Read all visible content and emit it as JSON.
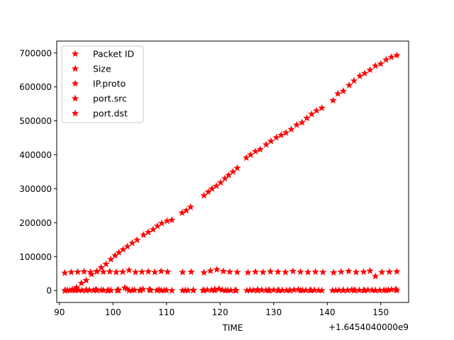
{
  "chart_data": {
    "type": "scatter",
    "title": "",
    "xlabel": "TIME",
    "ylabel": "",
    "x_offset_text": "+1.6454040000e9",
    "xlim": [
      89.5,
      155.2
    ],
    "ylim": [
      -35000,
      735000
    ],
    "xticks": [
      90,
      100,
      110,
      120,
      130,
      140,
      150
    ],
    "yticks": [
      0,
      100000,
      200000,
      300000,
      400000,
      500000,
      600000,
      700000
    ],
    "grid": false,
    "legend_position": "top-left",
    "marker": "star",
    "marker_color": "#ff0000",
    "series": [
      {
        "name": "Packet ID",
        "points": [
          [
            91.1,
            200
          ],
          [
            92.4,
            3000
          ],
          [
            93.2,
            9000
          ],
          [
            94.1,
            22000
          ],
          [
            95,
            30000
          ],
          [
            96,
            48000
          ],
          [
            97,
            56000
          ],
          [
            97.8,
            68000
          ],
          [
            98.7,
            78000
          ],
          [
            99.6,
            92000
          ],
          [
            100.4,
            103000
          ],
          [
            101.1,
            112000
          ],
          [
            101.9,
            121000
          ],
          [
            102.7,
            130000
          ],
          [
            103.6,
            140000
          ],
          [
            104.5,
            149000
          ],
          [
            105.7,
            164000
          ],
          [
            106.6,
            172000
          ],
          [
            107.5,
            180000
          ],
          [
            108.3,
            190000
          ],
          [
            109.1,
            198000
          ],
          [
            110.1,
            205000
          ],
          [
            111,
            208000
          ],
          [
            112.9,
            229000
          ],
          [
            113.7,
            236000
          ],
          [
            114.5,
            246000
          ],
          [
            117,
            280000
          ],
          [
            117.8,
            291000
          ],
          [
            118.5,
            300000
          ],
          [
            119.3,
            308000
          ],
          [
            120.1,
            318000
          ],
          [
            120.9,
            330000
          ],
          [
            121.6,
            340000
          ],
          [
            122.4,
            350000
          ],
          [
            123.2,
            361000
          ],
          [
            124.9,
            391000
          ],
          [
            125.7,
            400000
          ],
          [
            126.6,
            410000
          ],
          [
            127.5,
            416000
          ],
          [
            128.6,
            430000
          ],
          [
            129.5,
            440000
          ],
          [
            130.5,
            451000
          ],
          [
            131.4,
            458000
          ],
          [
            132.3,
            465000
          ],
          [
            133.3,
            475000
          ],
          [
            134.3,
            488000
          ],
          [
            135.3,
            495000
          ],
          [
            136.2,
            508000
          ],
          [
            137.1,
            520000
          ],
          [
            138,
            530000
          ],
          [
            139,
            538000
          ],
          [
            141.1,
            560000
          ],
          [
            142,
            580000
          ],
          [
            143,
            588000
          ],
          [
            144.1,
            605000
          ],
          [
            145,
            618000
          ],
          [
            146.1,
            632000
          ],
          [
            147,
            640000
          ],
          [
            148,
            650000
          ],
          [
            149,
            662000
          ],
          [
            150,
            668000
          ],
          [
            151,
            680000
          ],
          [
            152,
            688000
          ],
          [
            153,
            693000
          ]
        ]
      },
      {
        "name": "Size",
        "points": [
          [
            91,
            52000
          ],
          [
            92.2,
            54000
          ],
          [
            93.4,
            55000
          ],
          [
            94.6,
            56000
          ],
          [
            95.8,
            54000
          ],
          [
            97,
            57000
          ],
          [
            98.2,
            55000
          ],
          [
            99.4,
            56000
          ],
          [
            100.6,
            54000
          ],
          [
            101.8,
            55000
          ],
          [
            103,
            60000
          ],
          [
            104.2,
            54000
          ],
          [
            105.4,
            55000
          ],
          [
            106.6,
            56000
          ],
          [
            107.8,
            54000
          ],
          [
            109,
            57000
          ],
          [
            110.2,
            55000
          ],
          [
            113,
            54000
          ],
          [
            114.6,
            55000
          ],
          [
            117,
            53000
          ],
          [
            118.2,
            58000
          ],
          [
            119.4,
            62000
          ],
          [
            120.6,
            57000
          ],
          [
            121.8,
            55000
          ],
          [
            123.2,
            54000
          ],
          [
            125.2,
            53000
          ],
          [
            126.6,
            55000
          ],
          [
            128,
            54000
          ],
          [
            129.4,
            56000
          ],
          [
            130.8,
            55000
          ],
          [
            132.2,
            54000
          ],
          [
            133.6,
            57000
          ],
          [
            135,
            55000
          ],
          [
            136.4,
            54000
          ],
          [
            137.8,
            55000
          ],
          [
            139.2,
            54000
          ],
          [
            141.2,
            53000
          ],
          [
            142.6,
            55000
          ],
          [
            144,
            57000
          ],
          [
            145.4,
            54000
          ],
          [
            146.8,
            55000
          ],
          [
            148,
            58000
          ],
          [
            149,
            42000
          ],
          [
            150.2,
            54000
          ],
          [
            151.6,
            55000
          ],
          [
            153,
            56000
          ]
        ]
      },
      {
        "name": "IP.proto",
        "points": [
          [
            91,
            200
          ],
          [
            93,
            200
          ],
          [
            95,
            200
          ],
          [
            97,
            200
          ],
          [
            99,
            200
          ],
          [
            101,
            200
          ],
          [
            103,
            200
          ],
          [
            105,
            200
          ],
          [
            107,
            200
          ],
          [
            109,
            200
          ],
          [
            111,
            200
          ],
          [
            113,
            200
          ],
          [
            115,
            200
          ],
          [
            117,
            200
          ],
          [
            119,
            200
          ],
          [
            121,
            200
          ],
          [
            123,
            200
          ],
          [
            125,
            200
          ],
          [
            127,
            200
          ],
          [
            129,
            200
          ],
          [
            131,
            200
          ],
          [
            133,
            200
          ],
          [
            135,
            200
          ],
          [
            137,
            200
          ],
          [
            139,
            200
          ],
          [
            141,
            200
          ],
          [
            143,
            200
          ],
          [
            145,
            200
          ],
          [
            147,
            200
          ],
          [
            149,
            200
          ],
          [
            151,
            200
          ],
          [
            153,
            200
          ]
        ]
      },
      {
        "name": "port.src",
        "points": [
          [
            91.5,
            1000
          ],
          [
            92.8,
            2500
          ],
          [
            94.2,
            800
          ],
          [
            95.6,
            1500
          ],
          [
            96.8,
            3000
          ],
          [
            98.2,
            1200
          ],
          [
            99.6,
            800
          ],
          [
            101,
            2000
          ],
          [
            102.6,
            5000
          ],
          [
            104,
            1500
          ],
          [
            105.6,
            4000
          ],
          [
            107,
            1000
          ],
          [
            108.6,
            2500
          ],
          [
            110,
            1200
          ],
          [
            113.5,
            800
          ],
          [
            115,
            1500
          ],
          [
            117.6,
            2000
          ],
          [
            119,
            4000
          ],
          [
            120.4,
            1500
          ],
          [
            122,
            900
          ],
          [
            125.6,
            1200
          ],
          [
            127,
            3000
          ],
          [
            128.6,
            1000
          ],
          [
            130,
            1800
          ],
          [
            131.6,
            800
          ],
          [
            133,
            1500
          ],
          [
            134.6,
            3000
          ],
          [
            136,
            1000
          ],
          [
            137.6,
            1200
          ],
          [
            141.6,
            900
          ],
          [
            143,
            1500
          ],
          [
            144.6,
            2500
          ],
          [
            146,
            1000
          ],
          [
            147.6,
            1800
          ],
          [
            149,
            800
          ],
          [
            150.6,
            1500
          ],
          [
            152,
            3000
          ]
        ]
      },
      {
        "name": "port.dst",
        "points": [
          [
            92,
            600
          ],
          [
            93.6,
            1200
          ],
          [
            95,
            2500
          ],
          [
            96.4,
            800
          ],
          [
            97.8,
            1500
          ],
          [
            99.2,
            600
          ],
          [
            100.8,
            1200
          ],
          [
            102.2,
            8000
          ],
          [
            103.6,
            900
          ],
          [
            105.2,
            1500
          ],
          [
            106.8,
            3500
          ],
          [
            108.2,
            800
          ],
          [
            109.6,
            1200
          ],
          [
            114,
            600
          ],
          [
            116.8,
            1000
          ],
          [
            118.4,
            1500
          ],
          [
            119.8,
            5000
          ],
          [
            121.4,
            1000
          ],
          [
            122.8,
            800
          ],
          [
            126.2,
            1000
          ],
          [
            127.8,
            1500
          ],
          [
            129.2,
            800
          ],
          [
            130.8,
            1200
          ],
          [
            132.4,
            600
          ],
          [
            133.8,
            2000
          ],
          [
            135.4,
            900
          ],
          [
            136.8,
            1500
          ],
          [
            138.4,
            700
          ],
          [
            142.2,
            1000
          ],
          [
            143.8,
            800
          ],
          [
            145.2,
            1500
          ],
          [
            146.8,
            900
          ],
          [
            148.4,
            1200
          ],
          [
            149.8,
            800
          ],
          [
            151.4,
            1500
          ],
          [
            152.8,
            4000
          ]
        ]
      }
    ]
  }
}
